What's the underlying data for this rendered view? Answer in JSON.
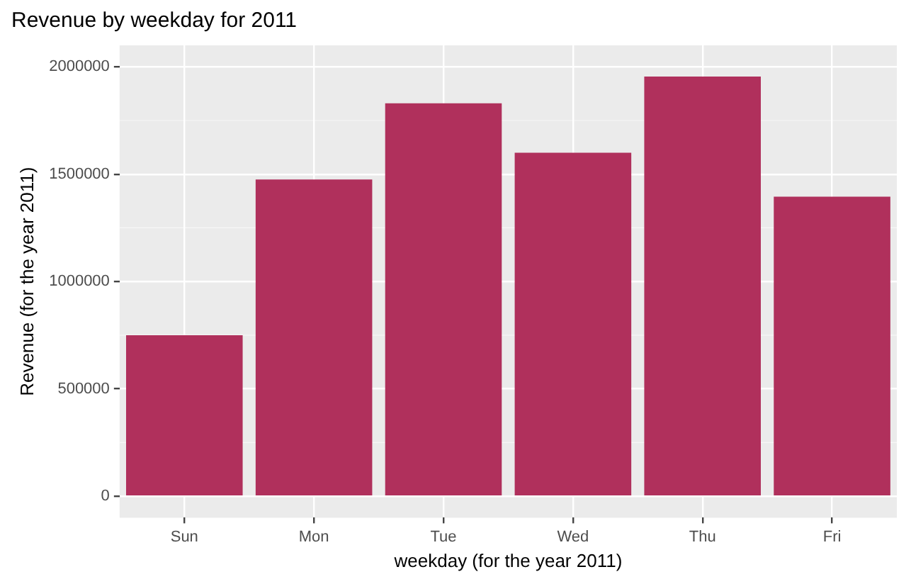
{
  "chart_data": {
    "type": "bar",
    "title": "Revenue by weekday for 2011",
    "xlabel": "weekday (for the year 2011)",
    "ylabel": "Revenue (for the year 2011)",
    "categories": [
      "Sun",
      "Mon",
      "Tue",
      "Wed",
      "Thu",
      "Fri"
    ],
    "values": [
      750000,
      1475000,
      1830000,
      1600000,
      1955000,
      1395000
    ],
    "color": "#b0305c",
    "ylim": [
      -100000,
      2100000
    ],
    "yticks": [
      0,
      500000,
      1000000,
      1500000,
      2000000
    ],
    "grid": true
  }
}
